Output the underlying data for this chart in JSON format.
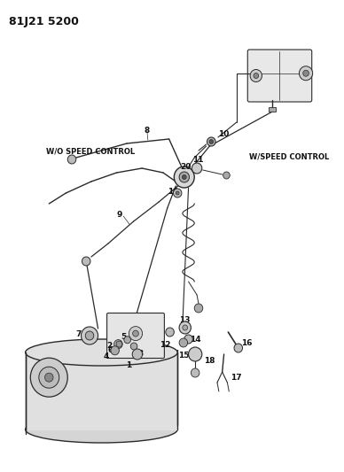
{
  "title": "81J21 5200",
  "bg": "#ffffff",
  "lc": "#2a2a2a",
  "tc": "#111111",
  "wo_label": "W/O SPEED CONTROL",
  "w_label": "W/SPEED CONTROL",
  "figsize": [
    3.88,
    5.33
  ],
  "dpi": 100
}
